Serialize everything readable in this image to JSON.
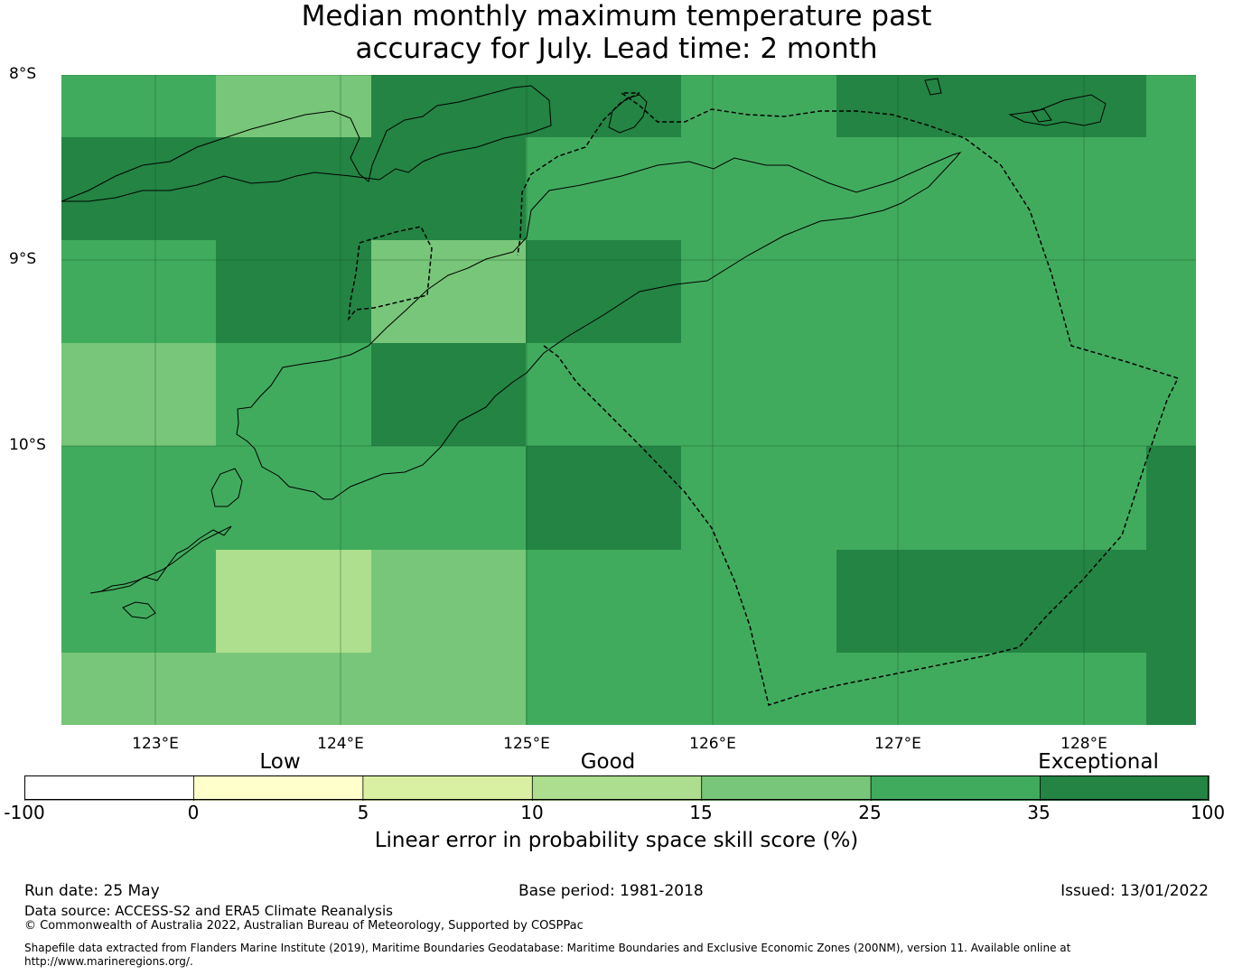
{
  "title": {
    "line1": "Median monthly maximum temperature past",
    "line2": "accuracy for July. Lead time: 2 month"
  },
  "map": {
    "lat_labels": [
      "8°S",
      "9°S",
      "10°S"
    ],
    "lon_labels": [
      "123°E",
      "124°E",
      "125°E",
      "126°E",
      "127°E",
      "128°E"
    ],
    "extent": {
      "lon": [
        122.5,
        128.6
      ],
      "lat": [
        -11.5,
        -8.0
      ]
    },
    "grid_cells": [
      [
        "mid",
        "light",
        "dark",
        "dark",
        "mid",
        "dark",
        "dark",
        "mid"
      ],
      [
        "dark",
        "dark",
        "dark",
        "mid",
        "mid",
        "mid",
        "mid",
        "mid"
      ],
      [
        "mid",
        "dark",
        "light",
        "dark",
        "mid",
        "mid",
        "mid",
        "mid"
      ],
      [
        "light",
        "mid",
        "dark",
        "mid",
        "mid",
        "mid",
        "mid",
        "mid"
      ],
      [
        "mid",
        "mid",
        "mid",
        "dark",
        "mid",
        "mid",
        "mid",
        "dark"
      ],
      [
        "mid",
        "lighter",
        "light",
        "mid",
        "mid",
        "dark",
        "dark",
        "dark"
      ],
      [
        "light",
        "light",
        "light",
        "mid",
        "mid",
        "mid",
        "mid",
        "dark"
      ]
    ],
    "colors": {
      "lighter": "#addf8e",
      "light": "#78c679",
      "mid": "#41ab5d",
      "dark": "#238443"
    }
  },
  "colorbar": {
    "categories": [
      "Low",
      "Good",
      "Exceptional"
    ],
    "ticks": [
      "-100",
      "0",
      "5",
      "10",
      "15",
      "25",
      "35",
      "100"
    ],
    "colors": [
      "#ffffff",
      "#ffffcc",
      "#d9f0a3",
      "#addd8e",
      "#78c679",
      "#41ab5d",
      "#238443"
    ],
    "label": "Linear error in probability space skill score (%)"
  },
  "footer": {
    "run_date": "Run date: 25 May",
    "base_period": "Base period: 1981-2018",
    "issued": "Issued: 13/01/2022",
    "data_source": "Data source: ACCESS-S2 and ERA5 Climate Reanalysis",
    "copyright": "© Commonwealth of Australia 2022, Australian Bureau of Meteorology, Supported by COSPPac",
    "shapefile_line1": "Shapefile data extracted from Flanders Marine Institute (2019), Maritime Boundaries Geodatabase: Maritime Boundaries and Exclusive Economic Zones (200NM), version 11. Available online at",
    "shapefile_line2": "http://www.marineregions.org/."
  }
}
